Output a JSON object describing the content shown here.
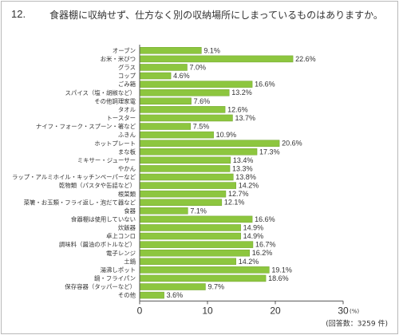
{
  "header": {
    "number": "12.",
    "question": "食器棚に収納せず、仕方なく別の収納場所にしまっているものはありますか。"
  },
  "colors": {
    "bar": "#8dc63f",
    "bar_edge": "#6fa32a",
    "axis": "#555555",
    "grid": "#cccccc"
  },
  "chart_data": {
    "type": "bar",
    "orientation": "horizontal",
    "categories": [
      "オーブン",
      "お米・米びつ",
      "グラス",
      "コップ",
      "ごみ箱",
      "スパイス（塩・胡椒など）",
      "その他調理家電",
      "タオル",
      "トースター",
      "ナイフ・フォーク・スプーン・箸など",
      "ふきん",
      "ホットプレート",
      "まな板",
      "ミキサー・ジューサー",
      "やかん",
      "ラップ・アルミホイル・キッチンペーパーなど",
      "乾物類（パスタや缶詰など）",
      "根菜類",
      "菜箸・お玉類・フライ返し・泡だて器など",
      "食器",
      "食器棚は使用していない",
      "炊飯器",
      "卓上コンロ",
      "調味料（醤油のボトルなど）",
      "電子レンジ",
      "土鍋",
      "湯沸しポット",
      "鍋・フライパン",
      "保存容器（タッパーなど）",
      "その他"
    ],
    "values": [
      9.1,
      22.6,
      7.0,
      4.6,
      16.6,
      13.2,
      7.6,
      12.6,
      13.7,
      7.5,
      10.9,
      20.6,
      17.3,
      13.4,
      13.3,
      13.8,
      14.2,
      12.7,
      12.1,
      7.1,
      16.6,
      14.9,
      14.9,
      16.7,
      16.2,
      14.2,
      19.1,
      18.6,
      9.7,
      3.6
    ],
    "value_labels": [
      "9.1%",
      "22.6%",
      "7.0%",
      "4.6%",
      "16.6%",
      "13.2%",
      "7.6%",
      "12.6%",
      "13.7%",
      "7.5%",
      "10.9%",
      "20.6%",
      "17.3%",
      "13.4%",
      "13.3%",
      "13.8%",
      "14.2%",
      "12.7%",
      "12.1%",
      "7.1%",
      "16.6%",
      "14.9%",
      "14.9%",
      "16.7%",
      "16.2%",
      "14.2%",
      "19.1%",
      "18.6%",
      "9.7%",
      "3.6%"
    ],
    "xlim": [
      0,
      30
    ],
    "xticks": [
      "0",
      "10",
      "20",
      "30"
    ],
    "unit_label": "(%)",
    "grid": false,
    "legend": "none"
  },
  "footnote": "(回答数：3259 件)"
}
